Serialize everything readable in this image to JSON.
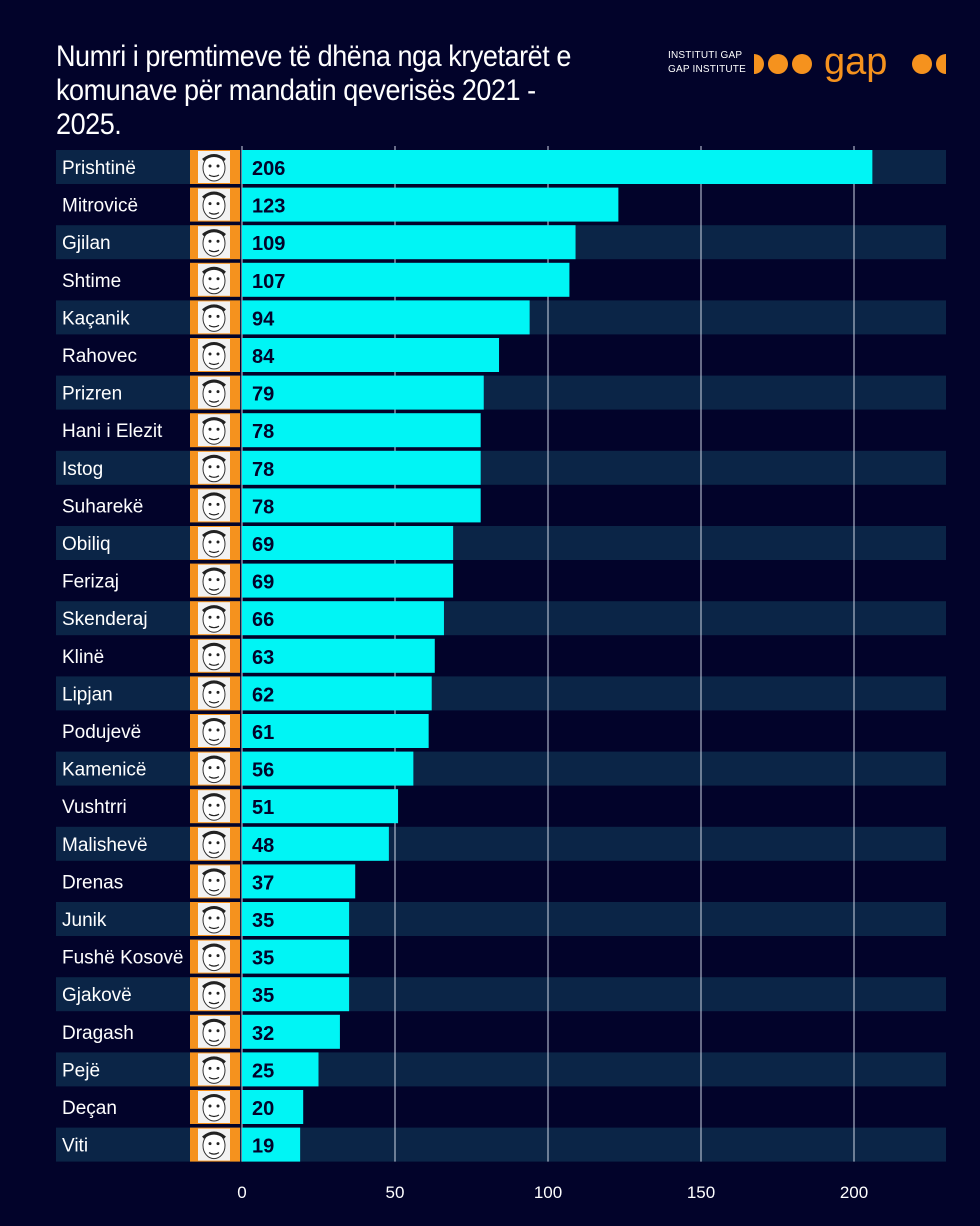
{
  "header": {
    "title_line1": "Numri i premtimeve të dhëna nga kryetarët e",
    "title_line2": "komunave për mandatin qeverisës 2021 - 2025.",
    "logo_line1": "INSTITUTI GAP",
    "logo_line2": "GAP INSTITUTE",
    "logo_word": "gap"
  },
  "colors": {
    "background": "#02032a",
    "bar": "#00f5f5",
    "row_stripe": "#0b2547",
    "portrait_bg": "#f5921e",
    "brand_orange": "#f5921e",
    "grid": "#cfd6e6"
  },
  "chart_data": {
    "type": "bar",
    "orientation": "horizontal",
    "title": "Numri i premtimeve të dhëna nga kryetarët e komunave për mandatin qeverisës 2021 - 2025.",
    "xlabel": "",
    "ylabel": "",
    "xlim": [
      0,
      230
    ],
    "xticks": [
      0,
      50,
      100,
      150,
      200
    ],
    "grid": true,
    "categories": [
      "Prishtinë",
      "Mitrovicë",
      "Gjilan",
      "Shtime",
      "Kaçanik",
      "Rahovec",
      "Prizren",
      "Hani i Elezit",
      "Istog",
      "Suharekë",
      "Obiliq",
      "Ferizaj",
      "Skenderaj",
      "Klinë",
      "Lipjan",
      "Podujevë",
      "Kamenicë",
      "Vushtrri",
      "Malishevë",
      "Drenas",
      "Junik",
      "Fushë Kosovë",
      "Gjakovë",
      "Dragash",
      "Pejë",
      "Deçan",
      "Viti"
    ],
    "values": [
      206,
      123,
      109,
      107,
      94,
      84,
      79,
      78,
      78,
      78,
      69,
      69,
      66,
      63,
      62,
      61,
      56,
      51,
      48,
      37,
      35,
      35,
      35,
      32,
      25,
      20,
      19
    ]
  }
}
